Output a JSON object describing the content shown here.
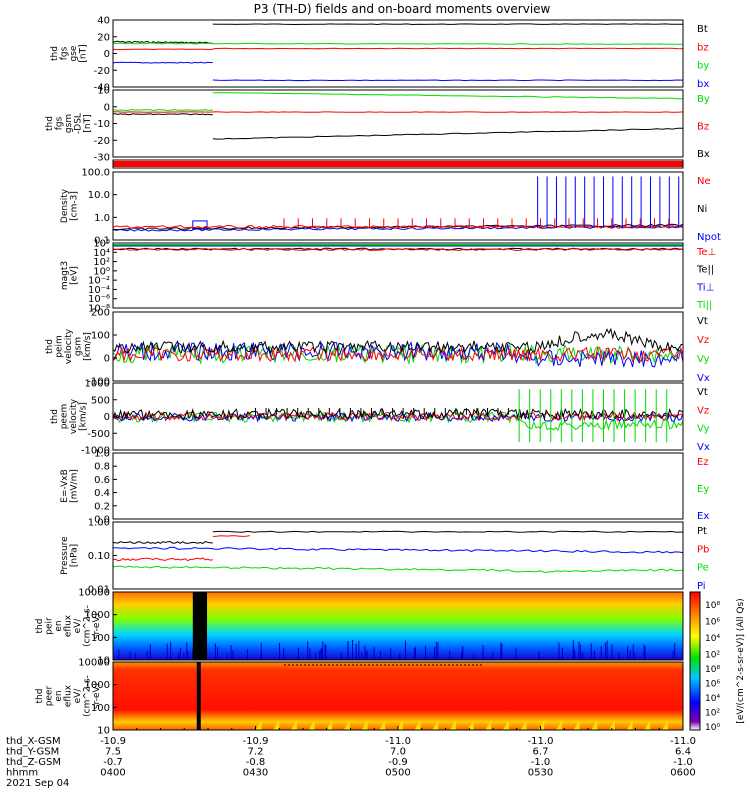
{
  "title": "P3 (TH-D) fields and on-board moments overview",
  "colors": {
    "black": "#000000",
    "red": "#ff0000",
    "green": "#00dd00",
    "blue": "#0000ff"
  },
  "panels": [
    {
      "id": "fgs-gse",
      "ylabel": [
        "thd",
        "fgs",
        "gse",
        "[nT]"
      ],
      "yticks": [
        "40",
        "20",
        "0",
        "-20",
        "-40"
      ],
      "legend": [
        {
          "label": "Bt",
          "color": "black"
        },
        {
          "label": "bz",
          "color": "red"
        },
        {
          "label": "by",
          "color": "green"
        },
        {
          "label": "bx",
          "color": "blue"
        }
      ]
    },
    {
      "id": "fgs-gsm",
      "ylabel": [
        "thd",
        "fgs",
        "gsm",
        "-DSL",
        "[nT]"
      ],
      "yticks": [
        "10",
        "0",
        "-10",
        "-20",
        "-30"
      ],
      "legend": [
        {
          "label": "By",
          "color": "green"
        },
        {
          "label": "Bz",
          "color": "red"
        },
        {
          "label": "Bx",
          "color": "black"
        }
      ]
    },
    {
      "id": "mode-bar",
      "ylabel": [],
      "yticks": [],
      "legend": []
    },
    {
      "id": "density",
      "ylabel": [
        "Density",
        "[cm-3]"
      ],
      "yticks": [
        "100.0",
        "10.0",
        "1.0",
        "0.1"
      ],
      "legend": [
        {
          "label": "Ne",
          "color": "red"
        },
        {
          "label": "Ni",
          "color": "black"
        },
        {
          "label": "Npot",
          "color": "blue"
        }
      ]
    },
    {
      "id": "temperature",
      "ylabel": [
        "magt3",
        "[eV]"
      ],
      "yticks": [
        "10⁶",
        "10⁴",
        "10²",
        "10⁰",
        "10⁻²",
        "10⁻⁴",
        "10⁻⁶",
        "10⁻⁸"
      ],
      "legend": [
        {
          "label": "Te⊥",
          "color": "red"
        },
        {
          "label": "Te||",
          "color": "black"
        },
        {
          "label": "Ti⊥",
          "color": "blue"
        },
        {
          "label": "Ti||",
          "color": "green"
        }
      ]
    },
    {
      "id": "peim-velocity",
      "ylabel": [
        "thd",
        "peim",
        "velocity",
        "gsm",
        "[km/s]"
      ],
      "yticks": [
        "200",
        "100",
        "0",
        "-100"
      ],
      "legend": [
        {
          "label": "Vt",
          "color": "black"
        },
        {
          "label": "Vz",
          "color": "red"
        },
        {
          "label": "Vy",
          "color": "green"
        },
        {
          "label": "Vx",
          "color": "blue"
        }
      ]
    },
    {
      "id": "peem-velocity",
      "ylabel": [
        "thd",
        "peem",
        "velocity",
        "[km/s]"
      ],
      "yticks": [
        "1000",
        "500",
        "0",
        "-500",
        "-1000"
      ],
      "legend": [
        {
          "label": "Vt",
          "color": "black"
        },
        {
          "label": "Vz",
          "color": "red"
        },
        {
          "label": "Vy",
          "color": "green"
        },
        {
          "label": "Vx",
          "color": "blue"
        }
      ]
    },
    {
      "id": "efield",
      "ylabel": [
        "E=-VxB",
        "[mV/m]"
      ],
      "yticks": [
        "1.0",
        "0.8",
        "0.6",
        "0.4",
        "0.2",
        "0.0"
      ],
      "legend": [
        {
          "label": "Ez",
          "color": "red"
        },
        {
          "label": "Ey",
          "color": "green"
        },
        {
          "label": "Ex",
          "color": "blue"
        }
      ]
    },
    {
      "id": "pressure",
      "ylabel": [
        "Pressure",
        "[nPa]"
      ],
      "yticks": [
        "1.00",
        "0.10",
        "0.01"
      ],
      "legend": [
        {
          "label": "Pt",
          "color": "black"
        },
        {
          "label": "Pb",
          "color": "red"
        },
        {
          "label": "Pe",
          "color": "green"
        },
        {
          "label": "Pi",
          "color": "blue"
        }
      ]
    },
    {
      "id": "peir-spec",
      "ylabel": [
        "thd",
        "peir",
        "en",
        "eflux",
        "eV/",
        "(cm^2-s-",
        "sr-eV)"
      ],
      "yticks": [
        "10000",
        "1000",
        "100",
        "10"
      ],
      "legend": []
    },
    {
      "id": "peer-spec",
      "ylabel": [
        "thd",
        "peer",
        "en",
        "eflux",
        "eV/",
        "(cm^2-s-",
        "sr-eV)"
      ],
      "yticks": [
        "10000",
        "1000",
        "100",
        "10"
      ],
      "legend": []
    }
  ],
  "colorbar": {
    "label": "[eV/(cm^2-s-sr-eV)] (All Qs)",
    "top_ticks": [
      "10⁸",
      "10⁶",
      "10⁴",
      "10²"
    ],
    "bottom_ticks": [
      "10⁸",
      "10⁶",
      "10⁴",
      "10²",
      "10⁰"
    ]
  },
  "axis": {
    "rows": [
      {
        "label": "thd_X-GSM",
        "values": [
          "-10.9",
          "-10.9",
          "-11.0",
          "-11.0",
          "-11.0"
        ]
      },
      {
        "label": "thd_Y-GSM",
        "values": [
          "7.5",
          "7.2",
          "7.0",
          "6.7",
          "6.4"
        ]
      },
      {
        "label": "thd_Z-GSM",
        "values": [
          "-0.7",
          "-0.8",
          "-0.9",
          "-1.0",
          "-1.0"
        ]
      },
      {
        "label": "hhmm",
        "values": [
          "0400",
          "0430",
          "0500",
          "0530",
          "0600"
        ]
      }
    ],
    "date": "2021 Sep 04"
  },
  "chart_data": {
    "type": "line",
    "title": "P3 (TH-D) fields and on-board moments overview",
    "time": [
      "0400",
      "0430",
      "0500",
      "0530",
      "0600"
    ],
    "date": "2021 Sep 04",
    "panels": [
      {
        "name": "thd fgs gse [nT]",
        "ylim": [
          -40,
          40
        ],
        "series": [
          {
            "name": "Bt",
            "x": [
              "0400",
              "0415",
              "0418",
              "0430",
              "0600"
            ],
            "values": [
              14,
              12,
              36,
              35,
              35
            ]
          },
          {
            "name": "bz",
            "x": [
              "0400",
              "0418",
              "0430",
              "0600"
            ],
            "values": [
              5,
              5,
              6,
              6
            ]
          },
          {
            "name": "by",
            "x": [
              "0400",
              "0418",
              "0430",
              "0600"
            ],
            "values": [
              12,
              12,
              12,
              11
            ]
          },
          {
            "name": "bx",
            "x": [
              "0400",
              "0418",
              "0430",
              "0600"
            ],
            "values": [
              -11,
              -10,
              -32,
              -32
            ]
          }
        ]
      },
      {
        "name": "thd fgs gsm-DSL [nT]",
        "ylim": [
          -35,
          10
        ],
        "series": [
          {
            "name": "By",
            "x": [
              "0400",
              "0418",
              "0430",
              "0500",
              "0600"
            ],
            "values": [
              -2,
              -1,
              11,
              9,
              7
            ]
          },
          {
            "name": "Bz",
            "x": [
              "0400",
              "0418",
              "0430",
              "0600"
            ],
            "values": [
              -4,
              -3,
              -3,
              -3
            ]
          },
          {
            "name": "Bx",
            "x": [
              "0400",
              "0418",
              "0425",
              "0500",
              "0600"
            ],
            "values": [
              -5,
              -6,
              -24,
              -21,
              -16
            ]
          }
        ]
      },
      {
        "name": "Density [cm-3]",
        "scale": "log",
        "ylim": [
          0.1,
          200
        ],
        "series": [
          {
            "name": "Ne",
            "x": [
              "0400",
              "0430",
              "0500",
              "0530",
              "0600"
            ],
            "values": [
              0.4,
              0.5,
              0.5,
              0.45,
              0.4
            ]
          },
          {
            "name": "Ni",
            "x": [
              "0400",
              "0430",
              "0500",
              "0530",
              "0600"
            ],
            "values": [
              0.3,
              0.35,
              0.4,
              0.5,
              0.5
            ]
          },
          {
            "name": "Npot",
            "x": [
              "0400",
              "0430",
              "0500",
              "0530",
              "0600"
            ],
            "values": [
              0.3,
              0.4,
              0.4,
              0.2,
              0.2
            ]
          }
        ]
      },
      {
        "name": "magt3 [eV]",
        "scale": "log",
        "ylim": [
          1e-08,
          1000000.0
        ]
      },
      {
        "name": "thd peim velocity gsm [km/s]",
        "ylim": [
          -130,
          200
        ],
        "series": [
          {
            "name": "Vt",
            "x": [
              "0400",
              "0430",
              "0500",
              "0530",
              "0545",
              "0600"
            ],
            "values": [
              40,
              45,
              50,
              55,
              100,
              50
            ]
          },
          {
            "name": "Vz",
            "x": [
              "0400",
              "0430",
              "0500",
              "0530",
              "0600"
            ],
            "values": [
              5,
              10,
              10,
              0,
              0
            ]
          },
          {
            "name": "Vy",
            "x": [
              "0400",
              "0430",
              "0500",
              "0530",
              "0600"
            ],
            "values": [
              0,
              10,
              10,
              30,
              30
            ]
          },
          {
            "name": "Vx",
            "x": [
              "0400",
              "0430",
              "0500",
              "0530",
              "0600"
            ],
            "values": [
              20,
              25,
              25,
              -20,
              -20
            ]
          }
        ]
      },
      {
        "name": "thd peem velocity [km/s]",
        "ylim": [
          -1000,
          1000
        ]
      },
      {
        "name": "E=-VxB [mV/m]",
        "ylim": [
          0,
          1
        ]
      },
      {
        "name": "Pressure [nPa]",
        "scale": "log",
        "ylim": [
          0.01,
          1.5
        ],
        "series": [
          {
            "name": "Pt",
            "x": [
              "0400",
              "0418",
              "0430",
              "0500",
              "0600"
            ],
            "values": [
              0.3,
              0.35,
              0.7,
              0.7,
              0.7
            ]
          },
          {
            "name": "Pb",
            "x": [
              "0400",
              "0418",
              "0430",
              "0600"
            ],
            "values": [
              0.1,
              0.1,
              0.5,
              0.5
            ]
          },
          {
            "name": "Pe",
            "x": [
              "0400",
              "0430",
              "0500",
              "0530",
              "0600"
            ],
            "values": [
              0.05,
              0.04,
              0.03,
              0.025,
              0.05
            ]
          },
          {
            "name": "Pi",
            "x": [
              "0400",
              "0430",
              "0500",
              "0530",
              "0600"
            ],
            "values": [
              0.2,
              0.2,
              0.18,
              0.15,
              0.14
            ]
          }
        ]
      }
    ]
  }
}
